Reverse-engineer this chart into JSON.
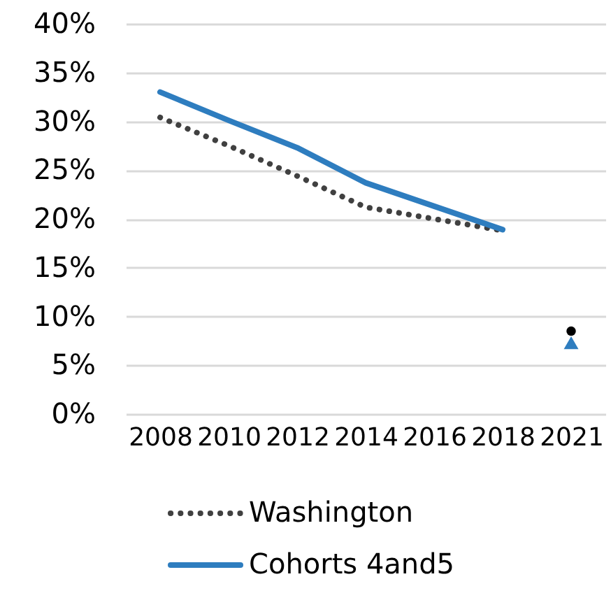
{
  "chart_data": {
    "type": "line",
    "categories": [
      "2008",
      "2010",
      "2012",
      "2014",
      "2016",
      "2018",
      "2021"
    ],
    "series": [
      {
        "name": "Washington",
        "color": "#404040",
        "line_style": "dotted",
        "values": [
          30.4,
          27.5,
          24.4,
          21.2,
          20.0,
          18.8,
          null
        ]
      },
      {
        "name": "Cohorts 4and5",
        "color": "#2e7dbf",
        "line_style": "solid",
        "values": [
          33.0,
          30.1,
          27.3,
          23.7,
          21.3,
          18.9,
          null
        ]
      },
      {
        "type": "scatter",
        "marker": "triangle",
        "color": "#2e7dbf",
        "values": [
          null,
          null,
          null,
          null,
          null,
          null,
          7.3
        ]
      },
      {
        "type": "scatter",
        "marker": "circle",
        "color": "#000000",
        "values": [
          null,
          null,
          null,
          null,
          null,
          null,
          8.5
        ]
      }
    ],
    "ylim": [
      0,
      40
    ],
    "yticks": [
      {
        "value": 0,
        "label": "0%"
      },
      {
        "value": 5,
        "label": "5%"
      },
      {
        "value": 10,
        "label": "10%"
      },
      {
        "value": 15,
        "label": "15%"
      },
      {
        "value": 20,
        "label": "20%"
      },
      {
        "value": 25,
        "label": "25%"
      },
      {
        "value": 30,
        "label": "30%"
      },
      {
        "value": 35,
        "label": "35%"
      },
      {
        "value": 40,
        "label": "40%"
      }
    ],
    "grid": "y",
    "legend": "bottom"
  }
}
